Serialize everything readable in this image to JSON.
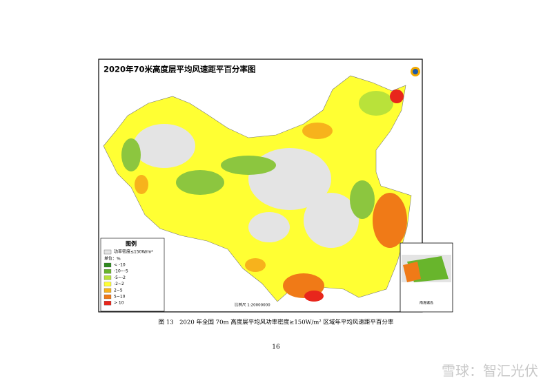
{
  "header": {
    "title": "2020年70米高度层平均风速距平百分率图"
  },
  "legend": {
    "title": "图例",
    "no_data": "功率密度≤150W/m²",
    "unit": "单位：%",
    "items": [
      {
        "label": "< -10",
        "color": "#2f8a1f"
      },
      {
        "label": "-10~-5",
        "color": "#68b52c"
      },
      {
        "label": "-5~-2",
        "color": "#b9e23a"
      },
      {
        "label": "-2~2",
        "color": "#ffff33"
      },
      {
        "label": "2~5",
        "color": "#f7b21c"
      },
      {
        "label": "5~10",
        "color": "#f07a17"
      },
      {
        "label": "> 10",
        "color": "#e8261c"
      }
    ]
  },
  "scale": "比例尺 1:20000000",
  "inset_label": "南海诸岛",
  "caption": "图 13　2020 年全国 70m 高度层平均风功率密度≥150W/m² 区域年平均风速距平百分率",
  "page_number": "16",
  "watermark": "雪球：智汇光伏"
}
